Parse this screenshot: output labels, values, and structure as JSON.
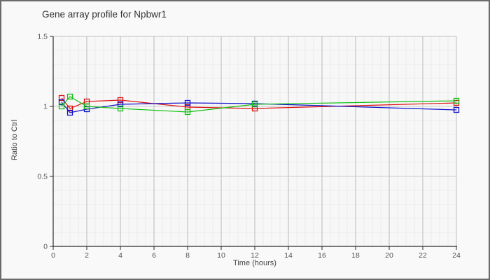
{
  "chart_data": {
    "type": "line",
    "title": "Gene array profile for Npbwr1",
    "xlabel": "Time (hours)",
    "ylabel": "Ratio to Ctrl",
    "xlim": [
      0,
      24
    ],
    "ylim": [
      0,
      1.5
    ],
    "x_ticks": [
      0,
      2,
      4,
      6,
      8,
      10,
      12,
      14,
      16,
      18,
      20,
      22,
      24
    ],
    "y_ticks": [
      0,
      0.5,
      1,
      1.5
    ],
    "y_tick_labels": [
      "0",
      "0.5",
      "1",
      "1.5"
    ],
    "grid": {
      "on": true,
      "x_minor_step": 0.5,
      "y_minor_step": 0.1
    },
    "legend": "none",
    "marker": "open-square",
    "x": [
      0.5,
      1,
      2,
      4,
      8,
      12,
      24
    ],
    "series": [
      {
        "name": "red",
        "color": "#dd1111",
        "values": [
          1.06,
          0.985,
          1.035,
          1.045,
          0.995,
          0.985,
          1.025
        ]
      },
      {
        "name": "blue",
        "color": "#1111cc",
        "values": [
          1.03,
          0.955,
          0.98,
          1.015,
          1.025,
          1.02,
          0.975
        ]
      },
      {
        "name": "green",
        "color": "#11c011",
        "values": [
          1.0,
          1.07,
          1.0,
          0.985,
          0.96,
          1.015,
          1.04
        ]
      }
    ],
    "style_colors": {
      "plot_bg": "#f7f7f7",
      "minor_grid": "#ebebeb",
      "major_grid_v": "#b8b8b8",
      "major_grid_h": "#cccccc",
      "plot_border": "#c0c0c0",
      "axis": "#2a2a2a",
      "tick_label": "#555555"
    }
  }
}
